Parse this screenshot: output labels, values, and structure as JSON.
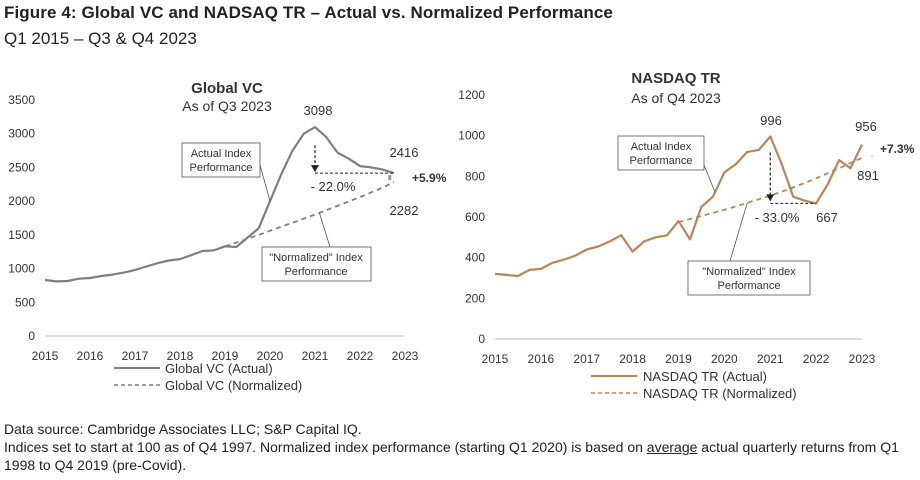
{
  "figure": {
    "title": "Figure 4: Global VC and NADSAQ TR – Actual vs. Normalized Performance",
    "subtitle": "Q1 2015 – Q3 & Q4 2023"
  },
  "colors": {
    "global_vc": "#7f7f7f",
    "nasdaq": "#b8865a",
    "text": "#333333",
    "axis": "#bfbfbf"
  },
  "chart_data": [
    {
      "type": "line",
      "title": "Global VC",
      "subtitle": "As of Q3 2023",
      "x_ticks": [
        "2015",
        "2016",
        "2017",
        "2018",
        "2019",
        "2020",
        "2021",
        "2022",
        "2023"
      ],
      "xlim": [
        2015,
        2023
      ],
      "ylim": [
        0,
        3500
      ],
      "y_ticks": [
        0,
        500,
        1000,
        1500,
        2000,
        2500,
        3000,
        3500
      ],
      "grid": false,
      "legend_position": "bottom",
      "series": [
        {
          "name": "Global VC (Actual)",
          "style": "solid",
          "x": [
            2015.0,
            2015.25,
            2015.5,
            2015.75,
            2016.0,
            2016.25,
            2016.5,
            2016.75,
            2017.0,
            2017.25,
            2017.5,
            2017.75,
            2018.0,
            2018.25,
            2018.5,
            2018.75,
            2019.0,
            2019.25,
            2019.5,
            2019.75,
            2020.0,
            2020.25,
            2020.5,
            2020.75,
            2021.0,
            2021.25,
            2021.5,
            2021.75,
            2022.0,
            2022.25,
            2022.5,
            2022.75
          ],
          "values": [
            830,
            810,
            815,
            850,
            860,
            890,
            910,
            940,
            980,
            1030,
            1080,
            1120,
            1140,
            1200,
            1260,
            1270,
            1330,
            1320,
            1460,
            1600,
            2000,
            2400,
            2750,
            3000,
            3098,
            2950,
            2720,
            2630,
            2520,
            2500,
            2470,
            2416
          ]
        },
        {
          "name": "Global VC (Normalized)",
          "style": "dashed",
          "x": [
            2019.0,
            2019.5,
            2020.0,
            2020.5,
            2021.0,
            2021.5,
            2022.0,
            2022.5,
            2022.75
          ],
          "values": [
            1330,
            1440,
            1560,
            1680,
            1800,
            1930,
            2060,
            2200,
            2282
          ]
        }
      ],
      "annotations": {
        "peak_label": "3098",
        "actual_end_label": "2416",
        "normalized_end_label": "2282",
        "drop_label": "- 22.0%",
        "gap_label": "+5.9%",
        "actual_callout": [
          "Actual Index",
          "Performance"
        ],
        "normalized_callout": [
          "\"Normalized\" Index",
          "Performance"
        ]
      }
    },
    {
      "type": "line",
      "title": "NASDAQ TR",
      "subtitle": "As of Q4 2023",
      "x_ticks": [
        "2015",
        "2016",
        "2017",
        "2018",
        "2019",
        "2020",
        "2021",
        "2022",
        "2023"
      ],
      "xlim": [
        2015,
        2023
      ],
      "ylim": [
        0,
        1200
      ],
      "y_ticks": [
        0,
        200,
        400,
        600,
        800,
        1000,
        1200
      ],
      "grid": false,
      "legend_position": "bottom",
      "series": [
        {
          "name": "NASDAQ TR (Actual)",
          "style": "solid",
          "x": [
            2015.0,
            2015.25,
            2015.5,
            2015.75,
            2016.0,
            2016.25,
            2016.5,
            2016.75,
            2017.0,
            2017.25,
            2017.5,
            2017.75,
            2018.0,
            2018.25,
            2018.5,
            2018.75,
            2019.0,
            2019.25,
            2019.5,
            2019.75,
            2020.0,
            2020.25,
            2020.5,
            2020.75,
            2021.0,
            2021.25,
            2021.5,
            2021.75,
            2022.0,
            2022.25,
            2022.5,
            2022.75,
            2023.0
          ],
          "values": [
            320,
            315,
            310,
            340,
            345,
            375,
            390,
            410,
            440,
            455,
            480,
            510,
            430,
            480,
            500,
            510,
            580,
            490,
            650,
            700,
            820,
            860,
            920,
            930,
            996,
            860,
            700,
            680,
            667,
            760,
            880,
            840,
            956
          ]
        },
        {
          "name": "NASDAQ TR (Normalized)",
          "style": "dashed",
          "x": [
            2019.0,
            2019.5,
            2020.0,
            2020.5,
            2021.0,
            2021.5,
            2022.0,
            2022.5,
            2023.0
          ],
          "values": [
            575,
            605,
            635,
            670,
            705,
            745,
            790,
            840,
            891
          ]
        }
      ],
      "annotations": {
        "peak_label": "996",
        "actual_end_label": "956",
        "normalized_end_label": "891",
        "trough_label": "667",
        "drop_label": "- 33.0%",
        "gap_label": "+7.3%",
        "actual_callout": [
          "Actual Index",
          "Performance"
        ],
        "normalized_callout": [
          "\"Normalized\" Index",
          "Performance"
        ]
      }
    }
  ],
  "footnotes": {
    "line1": "Data source: Cambridge Associates LLC; S&P Capital IQ.",
    "line2_pre": "Indices set to start at 100 as of Q4 1997. Normalized index performance (starting Q1 2020) is based on ",
    "line2_underlined": "average",
    "line2_post": " actual quarterly returns from Q1 1998 to Q4 2019 (pre-Covid)."
  }
}
